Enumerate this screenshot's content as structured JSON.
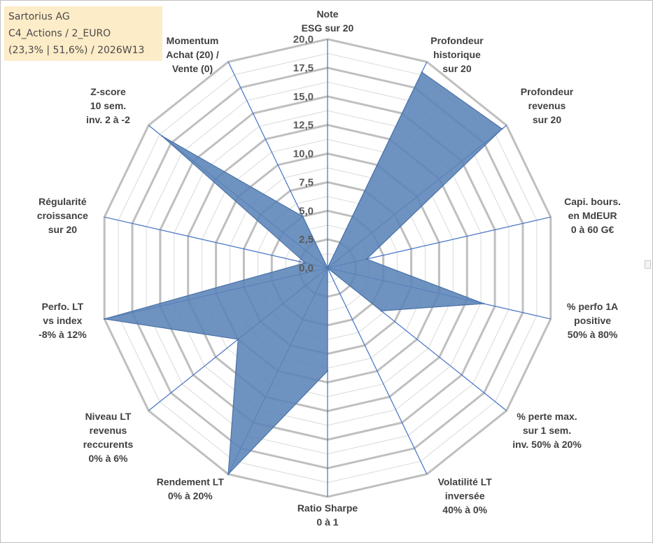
{
  "info": {
    "line1": "Sartorius AG",
    "line2": "C4_Actions / 2_EURO",
    "line3": "(23,3% | 51,6%) / 2026W13"
  },
  "colors": {
    "fill": "#5b84b8",
    "stroke": "#4a72a6",
    "ring": "#bfbfbf",
    "inner_grid": "#d9d9d9",
    "spoke": "#4472c4"
  },
  "chart_data": {
    "type": "radar",
    "title": "",
    "r_min": 0,
    "r_max": 20,
    "ticks": [
      "0,0",
      "2,5",
      "5,0",
      "7,5",
      "10,0",
      "12,5",
      "15,0",
      "17,5",
      "20,0"
    ],
    "tick_values": [
      0,
      2.5,
      5,
      7.5,
      10,
      12.5,
      15,
      17.5,
      20
    ],
    "axes": [
      {
        "label": [
          "Note",
          "ESG sur 20"
        ],
        "value": 0
      },
      {
        "label": [
          "Profondeur",
          "historique",
          "sur 20"
        ],
        "value": 19
      },
      {
        "label": [
          "Profondeur",
          "revenus",
          "sur 20"
        ],
        "value": 19.5
      },
      {
        "label": [
          "Capi. bours.",
          "en MdEUR",
          "0 à 60 G€"
        ],
        "value": 3.5
      },
      {
        "label": [
          "% perfo 1A",
          "positive",
          "50% à 80%"
        ],
        "value": 14
      },
      {
        "label": [
          "% perte max.",
          "sur 1 sem.",
          "inv. 50% à 20%"
        ],
        "value": 6
      },
      {
        "label": [
          "Volatilité LT",
          "inversée",
          "40% à 0%"
        ],
        "value": 0
      },
      {
        "label": [
          "Ratio Sharpe",
          "0 à 1"
        ],
        "value": 9
      },
      {
        "label": [
          "Rendement LT",
          "0% à 20%"
        ],
        "value": 20
      },
      {
        "label": [
          "Niveau LT",
          "revenus",
          "reccurents",
          "0% à 6%"
        ],
        "value": 10
      },
      {
        "label": [
          "Perfo. LT",
          "vs index",
          "-8% à 12%"
        ],
        "value": 20
      },
      {
        "label": [
          "Régularité",
          "croissance",
          "sur 20"
        ],
        "value": 2
      },
      {
        "label": [
          "Z-score",
          "10 sem.",
          "inv. 2 à -2"
        ],
        "value": 18.5
      },
      {
        "label": [
          "Momentum",
          "Achat (20) /",
          "Vente (0)"
        ],
        "value": 5
      }
    ]
  }
}
